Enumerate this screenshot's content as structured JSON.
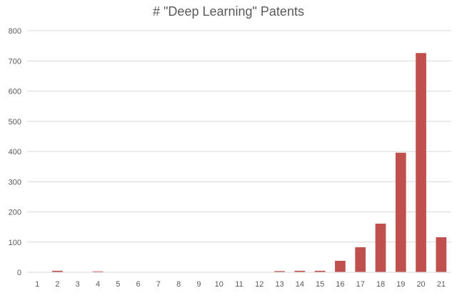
{
  "chart_data": {
    "type": "bar",
    "title": "# \"Deep Learning\" Patents",
    "xlabel": "",
    "ylabel": "",
    "categories": [
      "1",
      "2",
      "3",
      "4",
      "5",
      "6",
      "7",
      "8",
      "9",
      "10",
      "11",
      "12",
      "13",
      "14",
      "15",
      "16",
      "17",
      "18",
      "19",
      "20",
      "21"
    ],
    "values": [
      1,
      5,
      1,
      3,
      0,
      1,
      1,
      0,
      0,
      0,
      1,
      1,
      4,
      5,
      5,
      38,
      83,
      161,
      396,
      726,
      116
    ],
    "ylim": [
      0,
      800
    ],
    "yticks": [
      0,
      100,
      200,
      300,
      400,
      500,
      600,
      700,
      800
    ],
    "grid": true,
    "bar_color": "#c0504d"
  }
}
